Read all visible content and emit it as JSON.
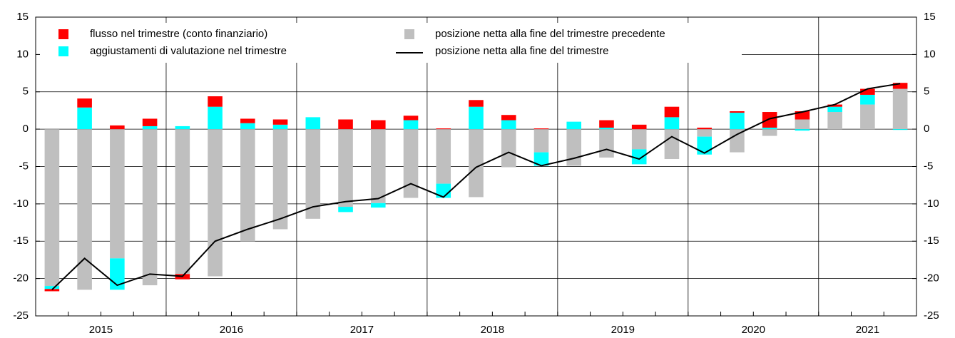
{
  "chart_data": {
    "type": "bar",
    "categories": [
      "2015",
      null,
      null,
      null,
      "2016",
      null,
      null,
      null,
      "2017",
      null,
      null,
      null,
      "2018",
      null,
      null,
      null,
      "2019",
      null,
      null,
      null,
      "2020",
      null,
      null,
      null,
      "2021",
      null,
      null
    ],
    "series": [
      {
        "name": "flusso nel trimestre (conto finanziario)",
        "type": "bar",
        "color": "#ff0000",
        "values": [
          -0.3,
          1.2,
          0.5,
          1.0,
          -0.7,
          1.4,
          0.6,
          0.7,
          0,
          1.3,
          1.2,
          0.6,
          0.1,
          0.9,
          0.7,
          0.1,
          0,
          1.0,
          0.6,
          1.4,
          0.2,
          0.2,
          2.1,
          1.1,
          0.3,
          0.8,
          0.8
        ]
      },
      {
        "name": "aggiustamenti di valutazione nel trimestre",
        "type": "bar",
        "color": "#00ffff",
        "values": [
          -0.4,
          2.9,
          -4.2,
          0.4,
          0.4,
          3.0,
          0.8,
          0.6,
          1.6,
          -0.7,
          -0.6,
          1.2,
          -1.9,
          3.0,
          1.2,
          -1.8,
          1.0,
          0.2,
          -2.0,
          1.6,
          -2.4,
          2.2,
          0.2,
          -0.2,
          0.7,
          1.3,
          -0.1
        ]
      },
      {
        "name": "posizione netta alla fine del trimestre precedente",
        "type": "bar",
        "color": "#bfbfbf",
        "values": [
          -21.0,
          -21.5,
          -17.3,
          -20.9,
          -19.4,
          -19.7,
          -15.0,
          -13.4,
          -12.0,
          -10.4,
          -9.9,
          -9.2,
          -7.3,
          -9.1,
          -5.1,
          -3.1,
          -4.9,
          -3.8,
          -2.7,
          -4.0,
          -1.0,
          -3.1,
          -0.9,
          1.3,
          2.3,
          3.3,
          5.4
        ]
      },
      {
        "name": "posizione netta alla fine del trimestre",
        "type": "line",
        "color": "#000000",
        "values": [
          -21.5,
          -17.3,
          -20.9,
          -19.4,
          -19.7,
          -15.0,
          -13.4,
          -12.0,
          -10.4,
          -9.7,
          -9.3,
          -7.3,
          -9.1,
          -5.1,
          -3.1,
          -4.9,
          -3.9,
          -2.7,
          -4.0,
          -1.0,
          -3.2,
          -0.7,
          1.4,
          2.3,
          3.3,
          5.4,
          6.1
        ]
      }
    ],
    "ylim": [
      -25,
      15
    ],
    "yticks": [
      -25,
      -20,
      -15,
      -10,
      -5,
      0,
      5,
      10,
      15
    ],
    "y2lim": [
      -25,
      15
    ],
    "y2ticks": [
      -25,
      -20,
      -15,
      -10,
      -5,
      0,
      5,
      10,
      15
    ],
    "grid": true
  }
}
